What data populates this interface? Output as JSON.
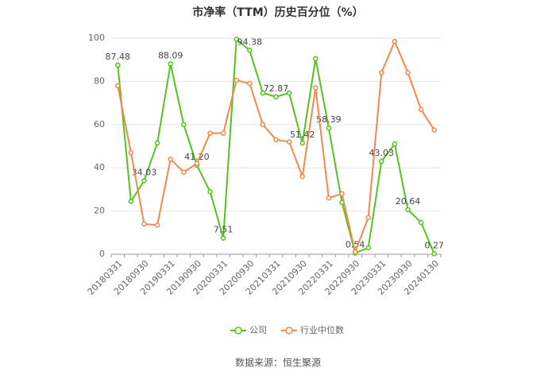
{
  "chart_data": {
    "type": "line",
    "title": "市净率（TTM）历史百分位（%）",
    "categories": [
      "20180331",
      null,
      "20180930",
      null,
      "20190331",
      null,
      "20190930",
      null,
      "20200331",
      null,
      "20200930",
      null,
      "20210331",
      null,
      "20210930",
      null,
      "20220331",
      null,
      "20220930",
      null,
      "20230331",
      null,
      "20230930",
      null,
      "20240130"
    ],
    "series": [
      {
        "name": "公司",
        "color": "#52c41a",
        "values": [
          87.48,
          24.5,
          34.03,
          51.5,
          88.09,
          60,
          41.2,
          29,
          7.51,
          99.5,
          94.38,
          74.6,
          72.87,
          74.6,
          51.42,
          90.5,
          58.39,
          24,
          0.54,
          3,
          43.03,
          51,
          20.64,
          14.7,
          0.27
        ],
        "value_labels": [
          "87.48",
          null,
          "34.03",
          null,
          "88.09",
          null,
          "41.20",
          null,
          "7.51",
          null,
          "94.38",
          null,
          "72.87",
          null,
          "51.42",
          null,
          "58.39",
          null,
          "0.54",
          null,
          "43.03",
          null,
          "20.64",
          null,
          "0.27"
        ]
      },
      {
        "name": "行业中位数",
        "color": "#f4874b",
        "values": [
          78,
          47,
          14,
          13.5,
          44,
          38,
          42,
          56,
          56,
          80.5,
          79,
          60,
          53,
          52,
          36,
          77,
          26,
          28,
          1,
          17,
          84,
          98.5,
          84,
          67,
          57.5
        ]
      }
    ],
    "ylim": [
      0,
      100
    ],
    "yticks": [
      0,
      20,
      40,
      60,
      80,
      100
    ],
    "grid": true,
    "legend": "bottom",
    "source": "数据来源：恒生聚源"
  }
}
